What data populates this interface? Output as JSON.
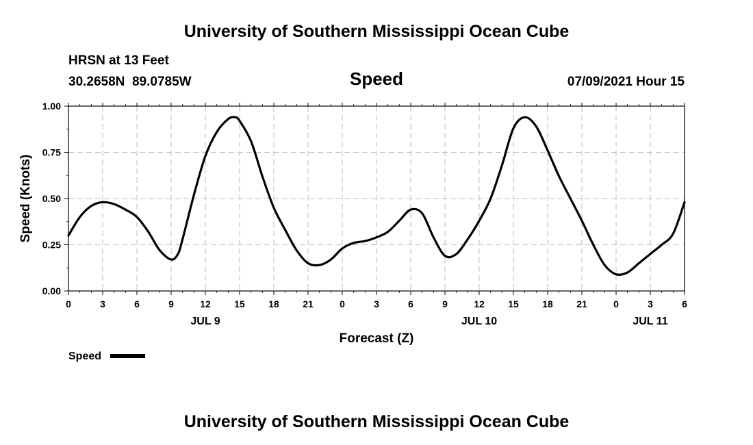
{
  "header": {
    "title": "University of Southern Mississippi Ocean Cube",
    "station": "HRSN at 13 Feet",
    "coords": "30.2658N  89.0785W",
    "subtitle": "Speed",
    "datetime": "07/09/2021 Hour 15",
    "footer": "University of Southern Mississippi Ocean Cube"
  },
  "legend": {
    "label": "Speed"
  },
  "chart_data": {
    "type": "line",
    "title": "Speed",
    "xlabel": "Forecast (Z)",
    "ylabel": "Speed (Knots)",
    "ylim": [
      0,
      1
    ],
    "y_ticks": [
      "0.00",
      "0.25",
      "0.50",
      "0.75",
      "1.00"
    ],
    "x_tick_labels": [
      "0",
      "3",
      "6",
      "9",
      "12",
      "15",
      "18",
      "21",
      "0",
      "3",
      "6",
      "9",
      "12",
      "15",
      "18",
      "21",
      "0",
      "3",
      "6"
    ],
    "date_labels": [
      {
        "label": "JUL 9",
        "tick_index": 4
      },
      {
        "label": "JUL 10",
        "tick_index": 12
      },
      {
        "label": "JUL 11",
        "tick_index": 17
      }
    ],
    "grid": true,
    "legend_position": "bottom-left",
    "series": [
      {
        "name": "Speed",
        "color": "#000000",
        "x_hours": [
          0,
          1,
          2,
          3,
          4,
          5,
          6,
          7,
          8,
          9,
          9.6,
          10,
          11,
          12,
          13,
          14,
          14.6,
          15,
          16,
          17,
          18,
          19,
          20,
          21,
          22,
          23,
          24,
          25,
          26,
          27,
          28,
          29,
          30,
          31,
          32,
          33,
          34,
          35,
          36,
          37,
          38,
          39,
          40,
          41,
          42,
          43,
          44,
          45,
          46,
          47,
          48,
          49,
          50,
          51,
          52,
          53,
          54
        ],
        "values": [
          0.3,
          0.4,
          0.46,
          0.48,
          0.47,
          0.44,
          0.4,
          0.32,
          0.22,
          0.17,
          0.2,
          0.28,
          0.52,
          0.73,
          0.86,
          0.93,
          0.94,
          0.92,
          0.81,
          0.62,
          0.45,
          0.33,
          0.22,
          0.15,
          0.14,
          0.17,
          0.23,
          0.26,
          0.27,
          0.29,
          0.32,
          0.38,
          0.44,
          0.42,
          0.29,
          0.19,
          0.2,
          0.28,
          0.38,
          0.5,
          0.68,
          0.88,
          0.94,
          0.89,
          0.76,
          0.62,
          0.5,
          0.38,
          0.25,
          0.14,
          0.09,
          0.1,
          0.15,
          0.2,
          0.25,
          0.31,
          0.48
        ]
      }
    ]
  }
}
